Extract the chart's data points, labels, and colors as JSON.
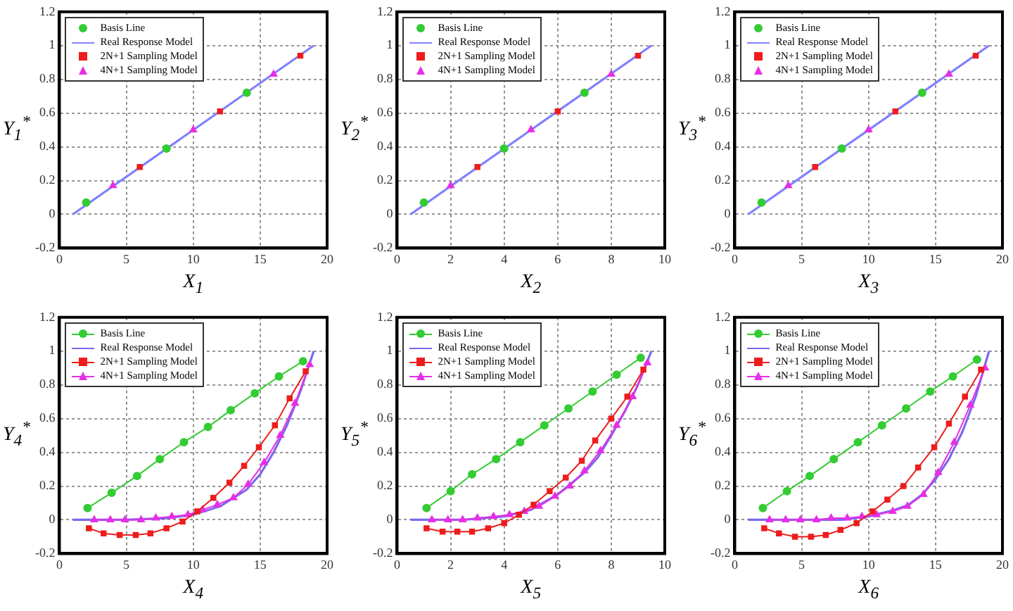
{
  "chart_data": [
    {
      "type": "line",
      "xlabel": "X$_{1}$",
      "ylabel": "Y$_{1}$$^{*}$",
      "xlim": [
        0,
        20
      ],
      "xticks": [
        0,
        5,
        10,
        15,
        20
      ],
      "ylim": [
        -0.2,
        1.2
      ],
      "yticks": [
        -0.2,
        0,
        0.2,
        0.4,
        0.6,
        0.8,
        1,
        1.2
      ],
      "grid": true,
      "legend": "top left",
      "series": [
        {
          "name": "Basis Line",
          "type": "scatter",
          "marker": "circle",
          "color": "#33cc33",
          "x": [
            2,
            8,
            14
          ],
          "values": [
            0.07,
            0.39,
            0.72
          ]
        },
        {
          "name": "Real Response Model",
          "type": "line",
          "marker": "none",
          "color": "#8080ff",
          "x": [
            1,
            19
          ],
          "values": [
            0,
            1
          ]
        },
        {
          "name": "2N+1 Sampling Model",
          "type": "scatter",
          "marker": "square",
          "color": "#ee1c1c",
          "x": [
            6,
            12,
            18
          ],
          "values": [
            0.28,
            0.61,
            0.94
          ]
        },
        {
          "name": "4N+1 Sampling Model",
          "type": "scatter",
          "marker": "triangle",
          "color": "#e62ee6",
          "x": [
            4,
            10,
            16
          ],
          "values": [
            0.17,
            0.5,
            0.83
          ]
        }
      ]
    },
    {
      "type": "line",
      "xlabel": "X$_{2}$",
      "ylabel": "Y$_{2}$$^{*}$",
      "xlim": [
        0,
        10
      ],
      "xticks": [
        0,
        2,
        4,
        6,
        8,
        10
      ],
      "ylim": [
        -0.2,
        1.2
      ],
      "yticks": [
        -0.2,
        0,
        0.2,
        0.4,
        0.6,
        0.8,
        1,
        1.2
      ],
      "grid": true,
      "legend": "top left",
      "series": [
        {
          "name": "Basis Line",
          "type": "scatter",
          "marker": "circle",
          "color": "#33cc33",
          "x": [
            1,
            4,
            7
          ],
          "values": [
            0.07,
            0.39,
            0.72
          ]
        },
        {
          "name": "Real Response Model",
          "type": "line",
          "marker": "none",
          "color": "#8080ff",
          "x": [
            0.5,
            9.5
          ],
          "values": [
            0,
            1
          ]
        },
        {
          "name": "2N+1 Sampling Model",
          "type": "scatter",
          "marker": "square",
          "color": "#ee1c1c",
          "x": [
            3,
            6,
            9
          ],
          "values": [
            0.28,
            0.61,
            0.94
          ]
        },
        {
          "name": "4N+1 Sampling Model",
          "type": "scatter",
          "marker": "triangle",
          "color": "#e62ee6",
          "x": [
            2,
            5,
            8
          ],
          "values": [
            0.17,
            0.5,
            0.83
          ]
        }
      ]
    },
    {
      "type": "line",
      "xlabel": "X$_{3}$",
      "ylabel": "Y$_{3}$$^{*}$",
      "xlim": [
        0,
        20
      ],
      "xticks": [
        0,
        5,
        10,
        15,
        20
      ],
      "ylim": [
        -0.2,
        1.2
      ],
      "yticks": [
        -0.2,
        0,
        0.2,
        0.4,
        0.6,
        0.8,
        1,
        1.2
      ],
      "grid": true,
      "legend": "top left",
      "series": [
        {
          "name": "Basis Line",
          "type": "scatter",
          "marker": "circle",
          "color": "#33cc33",
          "x": [
            2,
            8,
            14
          ],
          "values": [
            0.07,
            0.39,
            0.72
          ]
        },
        {
          "name": "Real Response Model",
          "type": "line",
          "marker": "none",
          "color": "#8080ff",
          "x": [
            1,
            19
          ],
          "values": [
            0,
            1
          ]
        },
        {
          "name": "2N+1 Sampling Model",
          "type": "scatter",
          "marker": "square",
          "color": "#ee1c1c",
          "x": [
            6,
            12,
            18
          ],
          "values": [
            0.28,
            0.61,
            0.94
          ]
        },
        {
          "name": "4N+1 Sampling Model",
          "type": "scatter",
          "marker": "triangle",
          "color": "#e62ee6",
          "x": [
            4,
            10,
            16
          ],
          "values": [
            0.17,
            0.5,
            0.83
          ]
        }
      ]
    },
    {
      "type": "line",
      "xlabel": "X$_{4}$",
      "ylabel": "Y$_{4}$$^{*}$",
      "xlim": [
        0,
        20
      ],
      "xticks": [
        0,
        5,
        10,
        15,
        20
      ],
      "ylim": [
        -0.2,
        1.2
      ],
      "yticks": [
        -0.2,
        0,
        0.2,
        0.4,
        0.6,
        0.8,
        1,
        1.2
      ],
      "grid": true,
      "legend": "top left",
      "series": [
        {
          "name": "Basis Line",
          "type": "line",
          "marker": "circle",
          "color": "#33cc33",
          "x": [
            2.1,
            3.9,
            5.8,
            7.5,
            9.3,
            11.1,
            12.8,
            14.6,
            16.4,
            18.2
          ],
          "values": [
            0.07,
            0.16,
            0.26,
            0.36,
            0.46,
            0.55,
            0.65,
            0.75,
            0.85,
            0.94
          ]
        },
        {
          "name": "Real Response Model",
          "type": "line",
          "marker": "none",
          "color": "#7b68ee",
          "x": [
            1,
            5,
            8,
            10,
            12,
            14,
            15,
            16,
            17,
            18,
            19
          ],
          "values": [
            0,
            0,
            0.01,
            0.03,
            0.08,
            0.18,
            0.27,
            0.4,
            0.56,
            0.76,
            1
          ]
        },
        {
          "name": "2N+1 Sampling Model",
          "type": "line",
          "marker": "square",
          "color": "#ee1c1c",
          "x": [
            2.2,
            3.3,
            4.5,
            5.7,
            6.8,
            8,
            9.2,
            10.3,
            11.5,
            12.7,
            13.8,
            14.9,
            16.1,
            17.2,
            18.4
          ],
          "values": [
            -0.05,
            -0.08,
            -0.09,
            -0.09,
            -0.08,
            -0.05,
            -0.01,
            0.05,
            0.13,
            0.22,
            0.32,
            0.43,
            0.56,
            0.72,
            0.88
          ]
        },
        {
          "name": "4N+1 Sampling Model",
          "type": "line",
          "marker": "triangle",
          "color": "#e62ee6",
          "x": [
            2.6,
            3.8,
            4.9,
            6.1,
            7.2,
            8.4,
            9.6,
            10.7,
            11.8,
            13,
            14.1,
            15.3,
            16.5,
            17.6,
            18.7
          ],
          "values": [
            0,
            0,
            0,
            0,
            0.01,
            0.02,
            0.03,
            0.06,
            0.09,
            0.13,
            0.21,
            0.34,
            0.5,
            0.69,
            0.92
          ]
        }
      ]
    },
    {
      "type": "line",
      "xlabel": "X$_{5}$",
      "ylabel": "Y$_{5}$$^{*}$",
      "xlim": [
        0,
        10
      ],
      "xticks": [
        0,
        2,
        4,
        6,
        8,
        10
      ],
      "ylim": [
        -0.2,
        1.2
      ],
      "yticks": [
        -0.2,
        0,
        0.2,
        0.4,
        0.6,
        0.8,
        1,
        1.2
      ],
      "grid": true,
      "legend": "top left",
      "series": [
        {
          "name": "Basis Line",
          "type": "line",
          "marker": "circle",
          "color": "#33cc33",
          "x": [
            1.1,
            2,
            2.8,
            3.7,
            4.6,
            5.5,
            6.4,
            7.3,
            8.2,
            9.1
          ],
          "values": [
            0.07,
            0.17,
            0.27,
            0.36,
            0.46,
            0.56,
            0.66,
            0.76,
            0.86,
            0.96
          ]
        },
        {
          "name": "Real Response Model",
          "type": "line",
          "marker": "none",
          "color": "#7b68ee",
          "x": [
            0.5,
            2.5,
            4,
            5,
            6,
            7,
            7.5,
            8,
            8.5,
            9,
            9.5
          ],
          "values": [
            0,
            0,
            0.02,
            0.06,
            0.15,
            0.28,
            0.37,
            0.5,
            0.64,
            0.8,
            1
          ]
        },
        {
          "name": "2N+1 Sampling Model",
          "type": "line",
          "marker": "square",
          "color": "#ee1c1c",
          "x": [
            1.1,
            1.7,
            2.25,
            2.8,
            3.4,
            4,
            4.55,
            5.1,
            5.7,
            6.3,
            6.9,
            7.4,
            8,
            8.6,
            9.2
          ],
          "values": [
            -0.05,
            -0.07,
            -0.07,
            -0.07,
            -0.05,
            -0.02,
            0.03,
            0.09,
            0.17,
            0.25,
            0.35,
            0.47,
            0.6,
            0.73,
            0.89
          ]
        },
        {
          "name": "4N+1 Sampling Model",
          "type": "line",
          "marker": "triangle",
          "color": "#e62ee6",
          "x": [
            1.3,
            1.9,
            2.45,
            3,
            3.6,
            4.2,
            4.75,
            5.3,
            5.9,
            6.45,
            7,
            7.6,
            8.2,
            8.8,
            9.35
          ],
          "values": [
            0,
            0,
            0,
            0.01,
            0.02,
            0.03,
            0.05,
            0.08,
            0.14,
            0.2,
            0.29,
            0.41,
            0.56,
            0.73,
            0.93
          ]
        }
      ]
    },
    {
      "type": "line",
      "xlabel": "X$_{6}$",
      "ylabel": "Y$_{6}$$^{*}$",
      "xlim": [
        0,
        20
      ],
      "xticks": [
        0,
        5,
        10,
        15,
        20
      ],
      "ylim": [
        -0.2,
        1.2
      ],
      "yticks": [
        -0.2,
        0,
        0.2,
        0.4,
        0.6,
        0.8,
        1,
        1.2
      ],
      "grid": true,
      "legend": "top left",
      "series": [
        {
          "name": "Basis Line",
          "type": "line",
          "marker": "circle",
          "color": "#33cc33",
          "x": [
            2.1,
            3.9,
            5.6,
            7.4,
            9.2,
            11,
            12.8,
            14.6,
            16.3,
            18.1
          ],
          "values": [
            0.07,
            0.17,
            0.26,
            0.36,
            0.46,
            0.56,
            0.66,
            0.76,
            0.85,
            0.95
          ]
        },
        {
          "name": "Real Response Model",
          "type": "line",
          "marker": "none",
          "color": "#7b68ee",
          "x": [
            1,
            8,
            10,
            12,
            13,
            14,
            15,
            16,
            17,
            18,
            19
          ],
          "values": [
            0,
            0,
            0.02,
            0.06,
            0.09,
            0.15,
            0.24,
            0.36,
            0.52,
            0.73,
            1
          ]
        },
        {
          "name": "2N+1 Sampling Model",
          "type": "line",
          "marker": "square",
          "color": "#ee1c1c",
          "x": [
            2.2,
            3.3,
            4.5,
            5.7,
            6.8,
            7.9,
            9.1,
            10.3,
            11.4,
            12.6,
            13.7,
            14.9,
            16,
            17.2,
            18.4
          ],
          "values": [
            -0.05,
            -0.08,
            -0.1,
            -0.1,
            -0.09,
            -0.06,
            -0.02,
            0.05,
            0.12,
            0.2,
            0.31,
            0.43,
            0.57,
            0.73,
            0.89
          ]
        },
        {
          "name": "4N+1 Sampling Model",
          "type": "line",
          "marker": "triangle",
          "color": "#e62ee6",
          "x": [
            2.6,
            3.8,
            4.9,
            6.1,
            7.2,
            8.4,
            9.5,
            10.6,
            11.8,
            12.9,
            14.1,
            15.2,
            16.4,
            17.6,
            18.7
          ],
          "values": [
            0,
            0,
            0,
            0,
            0.01,
            0.01,
            0.02,
            0.03,
            0.05,
            0.08,
            0.15,
            0.28,
            0.46,
            0.68,
            0.9
          ]
        }
      ]
    }
  ]
}
